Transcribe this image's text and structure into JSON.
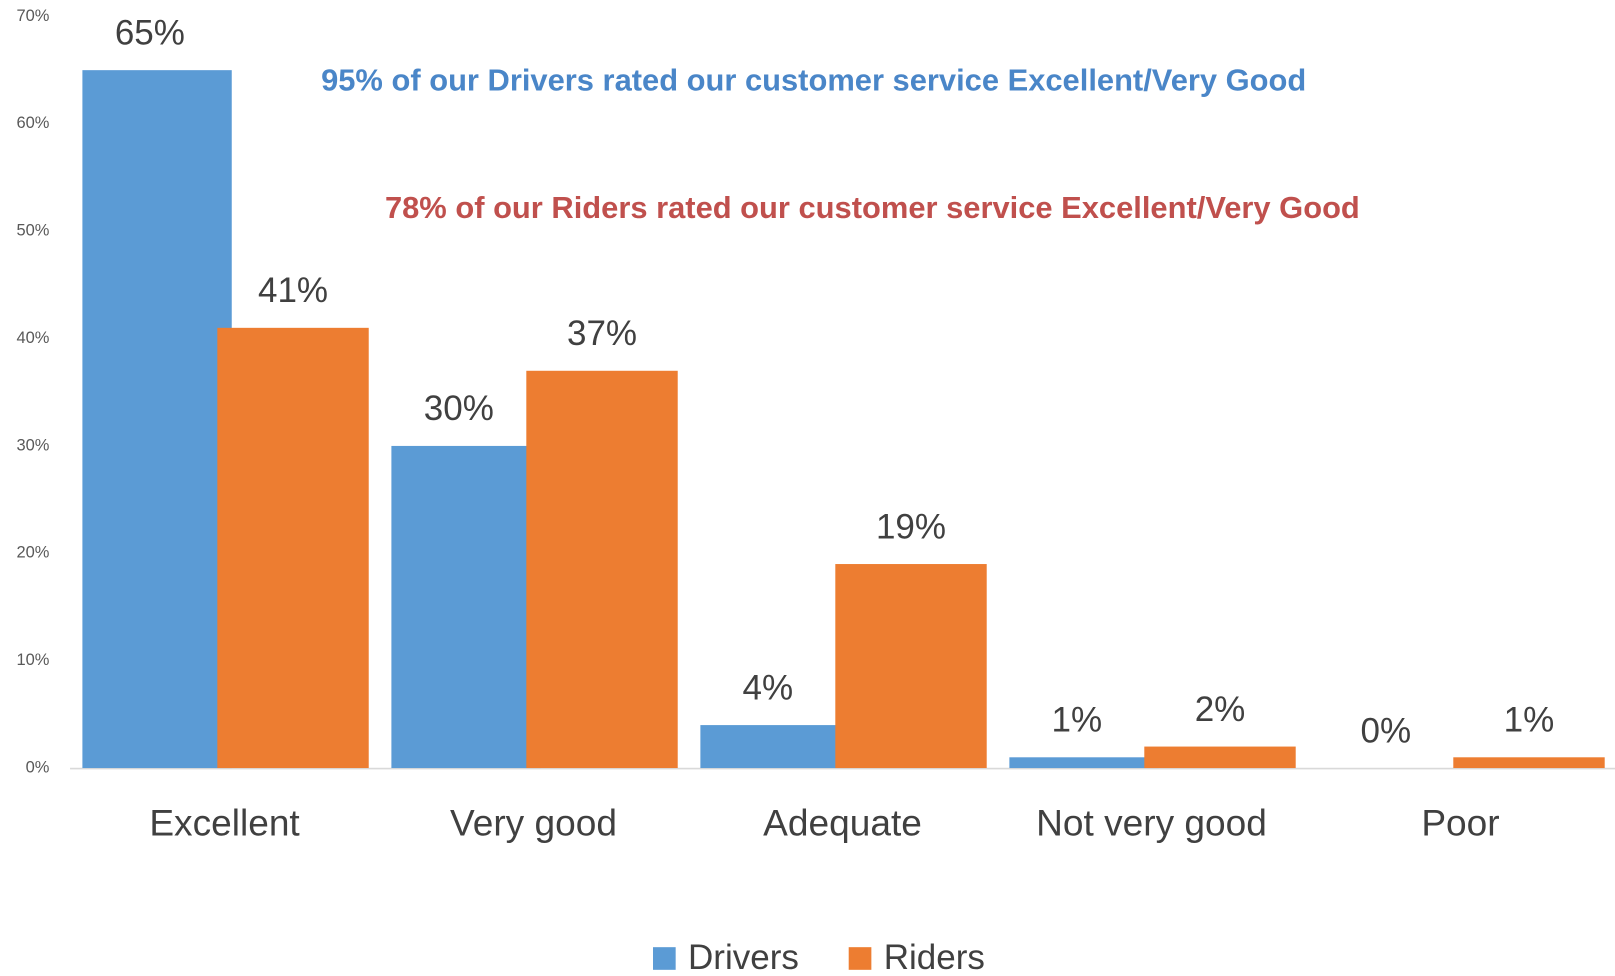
{
  "chart_data": {
    "type": "bar",
    "categories": [
      "Excellent",
      "Very good",
      "Adequate",
      "Not very good",
      "Poor"
    ],
    "series": [
      {
        "name": "Drivers",
        "color": "#5b9bd5",
        "values": [
          65,
          30,
          4,
          1,
          0
        ],
        "value_labels": [
          "65%",
          "30%",
          "4%",
          "1%",
          "0%"
        ]
      },
      {
        "name": "Riders",
        "color": "#ed7d31",
        "values": [
          41,
          37,
          19,
          2,
          1
        ],
        "value_labels": [
          "41%",
          "37%",
          "19%",
          "2%",
          "1%"
        ]
      }
    ],
    "ylim": [
      0,
      70
    ],
    "yticks": [
      {
        "value": 0,
        "label": "0%"
      },
      {
        "value": 10,
        "label": "10%"
      },
      {
        "value": 20,
        "label": "20%"
      },
      {
        "value": 30,
        "label": "30%"
      },
      {
        "value": 40,
        "label": "40%"
      },
      {
        "value": 50,
        "label": "50%"
      },
      {
        "value": 60,
        "label": "60%"
      },
      {
        "value": 70,
        "label": "70%"
      }
    ],
    "grid": false,
    "legend": "bottom",
    "annotations": [
      {
        "text": "95% of our Drivers rated our customer service Excellent/Very Good",
        "color": "#4a86c8"
      },
      {
        "text": "78% of our Riders rated our customer service Excellent/Very Good",
        "color": "#c0504d"
      }
    ]
  }
}
